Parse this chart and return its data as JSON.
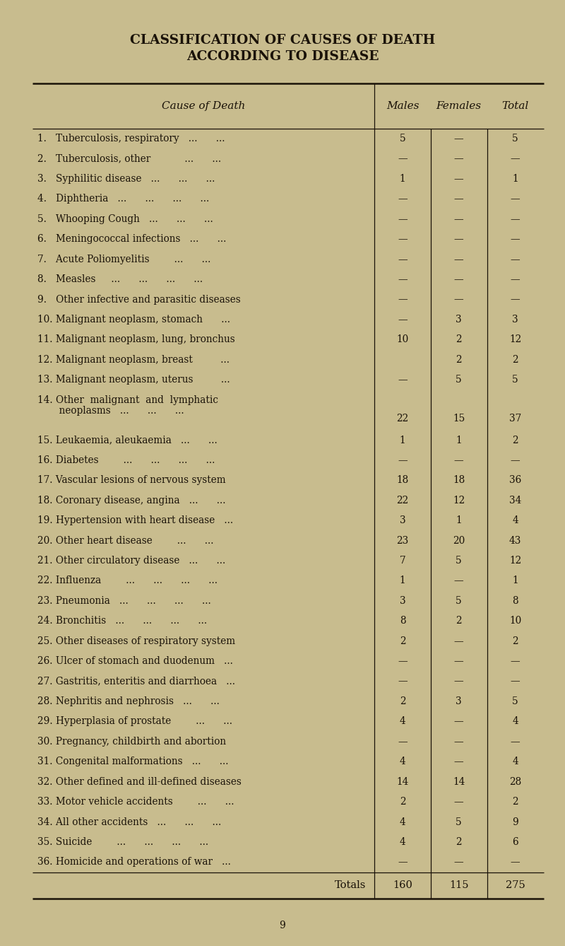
{
  "title_line1": "CLASSIFICATION OF CAUSES OF DEATH",
  "title_line2": "ACCORDING TO DISEASE",
  "bg_color": "#c8bc8e",
  "text_color": "#1a1208",
  "header": [
    "Cause of Death",
    "Males",
    "Females",
    "Total"
  ],
  "rows": [
    [
      "1.   Tuberculosis, respiratory   ...      ...",
      "5",
      "—",
      "5"
    ],
    [
      "2.   Tuberculosis, other           ...      ...",
      "—",
      "—",
      "—"
    ],
    [
      "3.   Syphilitic disease   ...      ...      ...",
      "1",
      "—",
      "1"
    ],
    [
      "4.   Diphtheria   ...      ...      ...      ...",
      "—",
      "—",
      "—"
    ],
    [
      "5.   Whooping Cough   ...      ...      ...",
      "—",
      "—",
      "—"
    ],
    [
      "6.   Meningococcal infections   ...      ...",
      "—",
      "—",
      "—"
    ],
    [
      "7.   Acute Poliomyelitis        ...      ...",
      "—",
      "—",
      "—"
    ],
    [
      "8.   Measles     ...      ...      ...      ...",
      "—",
      "—",
      "—"
    ],
    [
      "9.   Other infective and parasitic diseases",
      "—",
      "—",
      "—"
    ],
    [
      "10. Malignant neoplasm, stomach      ...",
      "—",
      "3",
      "3"
    ],
    [
      "11. Malignant neoplasm, lung, bronchus",
      "10",
      "2",
      "12"
    ],
    [
      "12. Malignant neoplasm, breast         ...",
      "",
      "2",
      "2"
    ],
    [
      "13. Malignant neoplasm, uterus         ...",
      "—",
      "5",
      "5"
    ],
    [
      "14. Other  malignant  and  lymphatic\n       neoplasms   ...      ...      ...",
      "22",
      "15",
      "37"
    ],
    [
      "15. Leukaemia, aleukaemia   ...      ...",
      "1",
      "1",
      "2"
    ],
    [
      "16. Diabetes        ...      ...      ...      ...",
      "—",
      "—",
      "—"
    ],
    [
      "17. Vascular lesions of nervous system",
      "18",
      "18",
      "36"
    ],
    [
      "18. Coronary disease, angina   ...      ...",
      "22",
      "12",
      "34"
    ],
    [
      "19. Hypertension with heart disease   ...",
      "3",
      "1",
      "4"
    ],
    [
      "20. Other heart disease        ...      ...",
      "23",
      "20",
      "43"
    ],
    [
      "21. Other circulatory disease   ...      ...",
      "7",
      "5",
      "12"
    ],
    [
      "22. Influenza        ...      ...      ...      ...",
      "1",
      "—",
      "1"
    ],
    [
      "23. Pneumonia   ...      ...      ...      ...",
      "3",
      "5",
      "8"
    ],
    [
      "24. Bronchitis   ...      ...      ...      ...",
      "8",
      "2",
      "10"
    ],
    [
      "25. Other diseases of respiratory system",
      "2",
      "—",
      "2"
    ],
    [
      "26. Ulcer of stomach and duodenum   ...",
      "—",
      "—",
      "—"
    ],
    [
      "27. Gastritis, enteritis and diarrhoea   ...",
      "—",
      "—",
      "—"
    ],
    [
      "28. Nephritis and nephrosis   ...      ...",
      "2",
      "3",
      "5"
    ],
    [
      "29. Hyperplasia of prostate        ...      ...",
      "4",
      "—",
      "4"
    ],
    [
      "30. Pregnancy, childbirth and abortion",
      "—",
      "—",
      "—"
    ],
    [
      "31. Congenital malformations   ...      ...",
      "4",
      "—",
      "4"
    ],
    [
      "32. Other defined and ill-defined diseases",
      "14",
      "14",
      "28"
    ],
    [
      "33. Motor vehicle accidents        ...      ...",
      "2",
      "—",
      "2"
    ],
    [
      "34. All other accidents   ...      ...      ...",
      "4",
      "5",
      "9"
    ],
    [
      "35. Suicide        ...      ...      ...      ...",
      "4",
      "2",
      "6"
    ],
    [
      "36. Homicide and operations of war   ...",
      "—",
      "—",
      "—"
    ]
  ],
  "totals_label": "Totals",
  "totals": [
    "160",
    "115",
    "275"
  ],
  "page_number": "9"
}
